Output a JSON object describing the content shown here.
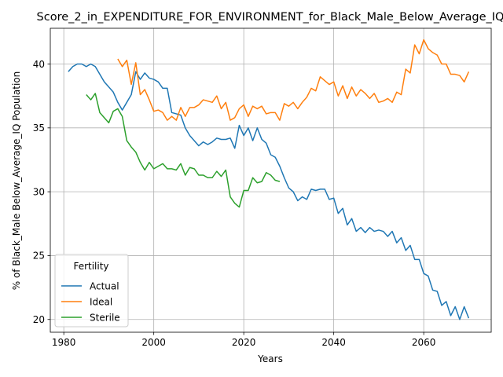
{
  "chart_data": {
    "type": "line",
    "title": "Score_2_in_EXPENDITURE_FOR_ENVIRONMENT_for_Black_Male_Below_Average_IQ",
    "xlabel": "Years",
    "ylabel": "% of Black_Male Below_Average_IQ Population",
    "xlim": [
      1977,
      2075
    ],
    "ylim": [
      19.0,
      42.8
    ],
    "xticks": [
      1980,
      2000,
      2020,
      2040,
      2060
    ],
    "yticks": [
      20,
      25,
      30,
      35,
      40
    ],
    "grid": true,
    "legend": {
      "title": "Fertility",
      "position": "lower-left"
    },
    "series": [
      {
        "name": "Actual",
        "color": "#1f77b4",
        "x": [
          1981,
          1982,
          1983,
          1984,
          1985,
          1986,
          1987,
          1988,
          1989,
          1990,
          1991,
          1992,
          1993,
          1994,
          1995,
          1996,
          1997,
          1998,
          1999,
          2000,
          2001,
          2002,
          2003,
          2004,
          2005,
          2006,
          2007,
          2008,
          2009,
          2010,
          2011,
          2012,
          2013,
          2014,
          2015,
          2016,
          2017,
          2018,
          2019,
          2020,
          2021,
          2022,
          2023,
          2024,
          2025,
          2026,
          2027,
          2028,
          2029,
          2030,
          2031,
          2032,
          2033,
          2034,
          2035,
          2036,
          2037,
          2038,
          2039,
          2040,
          2041,
          2042,
          2043,
          2044,
          2045,
          2046,
          2047,
          2048,
          2049,
          2050,
          2051,
          2052,
          2053,
          2054,
          2055,
          2056,
          2057,
          2058,
          2059,
          2060,
          2061,
          2062,
          2063,
          2064,
          2065,
          2066,
          2067,
          2068,
          2069,
          2070
        ],
        "y": [
          39.4,
          39.8,
          40.0,
          40.0,
          39.8,
          40.0,
          39.8,
          39.2,
          38.6,
          38.2,
          37.8,
          37.0,
          36.4,
          37.0,
          37.6,
          39.4,
          38.8,
          39.3,
          38.9,
          38.8,
          38.6,
          38.1,
          38.1,
          36.2,
          36.1,
          36.0,
          35.0,
          34.4,
          34.0,
          33.6,
          33.9,
          33.7,
          33.9,
          34.2,
          34.1,
          34.1,
          34.2,
          33.4,
          35.2,
          34.4,
          35.0,
          34.0,
          35.0,
          34.1,
          33.8,
          32.9,
          32.7,
          32.0,
          31.1,
          30.3,
          30.0,
          29.3,
          29.6,
          29.4,
          30.2,
          30.1,
          30.2,
          30.2,
          29.4,
          29.5,
          28.3,
          28.7,
          27.4,
          27.9,
          26.9,
          27.2,
          26.8,
          27.2,
          26.9,
          27.0,
          26.9,
          26.5,
          26.9,
          26.0,
          26.4,
          25.4,
          25.8,
          24.7,
          24.7,
          23.6,
          23.4,
          22.3,
          22.2,
          21.1,
          21.4,
          20.3,
          21.0,
          20.0,
          21.0,
          20.1
        ]
      },
      {
        "name": "Ideal",
        "color": "#ff7f0e",
        "x": [
          1992,
          1993,
          1994,
          1995,
          1996,
          1997,
          1998,
          1999,
          2000,
          2001,
          2002,
          2003,
          2004,
          2005,
          2006,
          2007,
          2008,
          2009,
          2010,
          2011,
          2012,
          2013,
          2014,
          2015,
          2016,
          2017,
          2018,
          2019,
          2020,
          2021,
          2022,
          2023,
          2024,
          2025,
          2026,
          2027,
          2028,
          2029,
          2030,
          2031,
          2032,
          2033,
          2034,
          2035,
          2036,
          2037,
          2038,
          2039,
          2040,
          2041,
          2042,
          2043,
          2044,
          2045,
          2046,
          2047,
          2048,
          2049,
          2050,
          2051,
          2052,
          2053,
          2054,
          2055,
          2056,
          2057,
          2058,
          2059,
          2060,
          2061,
          2062,
          2063,
          2064,
          2065,
          2066,
          2067,
          2068,
          2069,
          2070
        ],
        "y": [
          40.4,
          39.8,
          40.3,
          38.4,
          40.1,
          37.6,
          38.0,
          37.2,
          36.3,
          36.4,
          36.2,
          35.6,
          35.9,
          35.6,
          36.6,
          35.9,
          36.6,
          36.6,
          36.8,
          37.2,
          37.1,
          37.0,
          37.5,
          36.5,
          37.0,
          35.6,
          35.8,
          36.5,
          36.8,
          35.9,
          36.7,
          36.5,
          36.7,
          36.1,
          36.2,
          36.2,
          35.6,
          36.9,
          36.7,
          37.0,
          36.5,
          37.0,
          37.4,
          38.1,
          37.9,
          39.0,
          38.7,
          38.4,
          38.6,
          37.5,
          38.3,
          37.3,
          38.2,
          37.5,
          38.0,
          37.7,
          37.3,
          37.7,
          37.0,
          37.1,
          37.3,
          37.0,
          37.8,
          37.6,
          39.6,
          39.3,
          41.5,
          40.8,
          41.9,
          41.2,
          40.9,
          40.7,
          40.0,
          40.0,
          39.2,
          39.2,
          39.1,
          38.6,
          39.4
        ]
      },
      {
        "name": "Sterile",
        "color": "#2ca02c",
        "x": [
          1985,
          1986,
          1987,
          1988,
          1989,
          1990,
          1991,
          1992,
          1993,
          1994,
          1995,
          1996,
          1997,
          1998,
          1999,
          2000,
          2001,
          2002,
          2003,
          2004,
          2005,
          2006,
          2007,
          2008,
          2009,
          2010,
          2011,
          2012,
          2013,
          2014,
          2015,
          2016,
          2017,
          2018,
          2019,
          2020,
          2021,
          2022,
          2023,
          2024,
          2025,
          2026,
          2027,
          2028
        ],
        "y": [
          37.6,
          37.2,
          37.7,
          36.2,
          35.8,
          35.4,
          36.3,
          36.5,
          35.9,
          34.0,
          33.5,
          33.1,
          32.3,
          31.7,
          32.3,
          31.8,
          32.0,
          32.2,
          31.8,
          31.8,
          31.7,
          32.2,
          31.3,
          31.9,
          31.8,
          31.3,
          31.3,
          31.1,
          31.1,
          31.6,
          31.2,
          31.7,
          29.6,
          29.1,
          28.8,
          30.1,
          30.1,
          31.1,
          30.7,
          30.8,
          31.5,
          31.3,
          30.9,
          30.8
        ]
      }
    ]
  }
}
